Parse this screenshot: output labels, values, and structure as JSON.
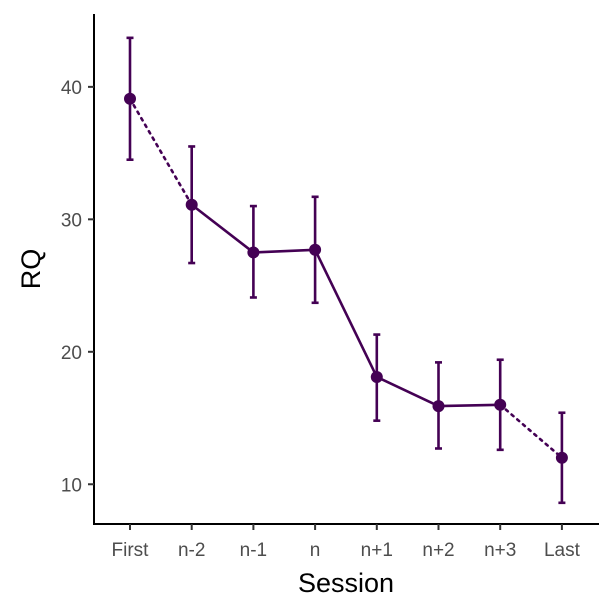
{
  "chart_data": {
    "type": "line",
    "xlabel": "Session",
    "ylabel": "RQ",
    "categories": [
      "First",
      "n-2",
      "n-1",
      "n",
      "n+1",
      "n+2",
      "n+3",
      "Last"
    ],
    "series": [
      {
        "values": [
          39.1,
          31.1,
          27.5,
          27.7,
          18.1,
          15.9,
          16.0,
          12.0
        ],
        "error_low": [
          34.5,
          26.7,
          24.1,
          23.7,
          14.8,
          12.7,
          12.6,
          8.6
        ],
        "error_high": [
          43.7,
          35.5,
          31.0,
          31.7,
          21.3,
          19.2,
          19.4,
          15.4
        ],
        "dotted_segments": [
          0,
          6
        ],
        "color": "#440154"
      }
    ],
    "yticks": [
      10,
      20,
      30,
      40
    ],
    "ylim": [
      7,
      45.5
    ],
    "grid": false,
    "legend": "none"
  }
}
